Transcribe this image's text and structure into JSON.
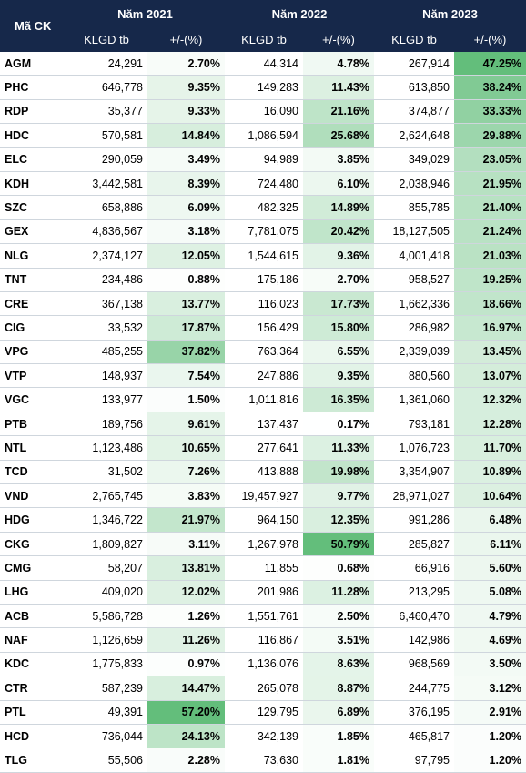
{
  "header": {
    "code_label": "Mã CK",
    "years": [
      "Năm 2021",
      "Năm 2022",
      "Năm 2023"
    ],
    "sub_volume": "KLGD tb",
    "sub_change": "+/-(%)"
  },
  "colors": {
    "header_bg": "#16284a",
    "scale_low": "#ffffff",
    "scale_high": "#63be7b"
  },
  "scale_max": {
    "2021": 57.2,
    "2022": 50.79,
    "2023": 47.25
  },
  "rows": [
    {
      "code": "AGM",
      "v21": "24,291",
      "c21": "2.70%",
      "v22": "44,314",
      "c22": "4.78%",
      "v23": "267,914",
      "c23": "47.25%"
    },
    {
      "code": "PHC",
      "v21": "646,778",
      "c21": "9.35%",
      "v22": "149,283",
      "c22": "11.43%",
      "v23": "613,850",
      "c23": "38.24%"
    },
    {
      "code": "RDP",
      "v21": "35,377",
      "c21": "9.33%",
      "v22": "16,090",
      "c22": "21.16%",
      "v23": "374,877",
      "c23": "33.33%"
    },
    {
      "code": "HDC",
      "v21": "570,581",
      "c21": "14.84%",
      "v22": "1,086,594",
      "c22": "25.68%",
      "v23": "2,624,648",
      "c23": "29.88%"
    },
    {
      "code": "ELC",
      "v21": "290,059",
      "c21": "3.49%",
      "v22": "94,989",
      "c22": "3.85%",
      "v23": "349,029",
      "c23": "23.05%"
    },
    {
      "code": "KDH",
      "v21": "3,442,581",
      "c21": "8.39%",
      "v22": "724,480",
      "c22": "6.10%",
      "v23": "2,038,946",
      "c23": "21.95%"
    },
    {
      "code": "SZC",
      "v21": "658,886",
      "c21": "6.09%",
      "v22": "482,325",
      "c22": "14.89%",
      "v23": "855,785",
      "c23": "21.40%"
    },
    {
      "code": "GEX",
      "v21": "4,836,567",
      "c21": "3.18%",
      "v22": "7,781,075",
      "c22": "20.42%",
      "v23": "18,127,505",
      "c23": "21.24%"
    },
    {
      "code": "NLG",
      "v21": "2,374,127",
      "c21": "12.05%",
      "v22": "1,544,615",
      "c22": "9.36%",
      "v23": "4,001,418",
      "c23": "21.03%"
    },
    {
      "code": "TNT",
      "v21": "234,486",
      "c21": "0.88%",
      "v22": "175,186",
      "c22": "2.70%",
      "v23": "958,527",
      "c23": "19.25%"
    },
    {
      "code": "CRE",
      "v21": "367,138",
      "c21": "13.77%",
      "v22": "116,023",
      "c22": "17.73%",
      "v23": "1,662,336",
      "c23": "18.66%"
    },
    {
      "code": "CIG",
      "v21": "33,532",
      "c21": "17.87%",
      "v22": "156,429",
      "c22": "15.80%",
      "v23": "286,982",
      "c23": "16.97%"
    },
    {
      "code": "VPG",
      "v21": "485,255",
      "c21": "37.82%",
      "v22": "763,364",
      "c22": "6.55%",
      "v23": "2,339,039",
      "c23": "13.45%"
    },
    {
      "code": "VTP",
      "v21": "148,937",
      "c21": "7.54%",
      "v22": "247,886",
      "c22": "9.35%",
      "v23": "880,560",
      "c23": "13.07%"
    },
    {
      "code": "VGC",
      "v21": "133,977",
      "c21": "1.50%",
      "v22": "1,011,816",
      "c22": "16.35%",
      "v23": "1,361,060",
      "c23": "12.32%"
    },
    {
      "code": "PTB",
      "v21": "189,756",
      "c21": "9.61%",
      "v22": "137,437",
      "c22": "0.17%",
      "v23": "793,181",
      "c23": "12.28%"
    },
    {
      "code": "NTL",
      "v21": "1,123,486",
      "c21": "10.65%",
      "v22": "277,641",
      "c22": "11.33%",
      "v23": "1,076,723",
      "c23": "11.70%"
    },
    {
      "code": "TCD",
      "v21": "31,502",
      "c21": "7.26%",
      "v22": "413,888",
      "c22": "19.98%",
      "v23": "3,354,907",
      "c23": "10.89%"
    },
    {
      "code": "VND",
      "v21": "2,765,745",
      "c21": "3.83%",
      "v22": "19,457,927",
      "c22": "9.77%",
      "v23": "28,971,027",
      "c23": "10.64%"
    },
    {
      "code": "HDG",
      "v21": "1,346,722",
      "c21": "21.97%",
      "v22": "964,150",
      "c22": "12.35%",
      "v23": "991,286",
      "c23": "6.48%"
    },
    {
      "code": "CKG",
      "v21": "1,809,827",
      "c21": "3.11%",
      "v22": "1,267,978",
      "c22": "50.79%",
      "v23": "285,827",
      "c23": "6.11%"
    },
    {
      "code": "CMG",
      "v21": "58,207",
      "c21": "13.81%",
      "v22": "11,855",
      "c22": "0.68%",
      "v23": "66,916",
      "c23": "5.60%"
    },
    {
      "code": "LHG",
      "v21": "409,020",
      "c21": "12.02%",
      "v22": "201,986",
      "c22": "11.28%",
      "v23": "213,295",
      "c23": "5.08%"
    },
    {
      "code": "ACB",
      "v21": "5,586,728",
      "c21": "1.26%",
      "v22": "1,551,761",
      "c22": "2.50%",
      "v23": "6,460,470",
      "c23": "4.79%"
    },
    {
      "code": "NAF",
      "v21": "1,126,659",
      "c21": "11.26%",
      "v22": "116,867",
      "c22": "3.51%",
      "v23": "142,986",
      "c23": "4.69%"
    },
    {
      "code": "KDC",
      "v21": "1,775,833",
      "c21": "0.97%",
      "v22": "1,136,076",
      "c22": "8.63%",
      "v23": "968,569",
      "c23": "3.50%"
    },
    {
      "code": "CTR",
      "v21": "587,239",
      "c21": "14.47%",
      "v22": "265,078",
      "c22": "8.87%",
      "v23": "244,775",
      "c23": "3.12%"
    },
    {
      "code": "PTL",
      "v21": "49,391",
      "c21": "57.20%",
      "v22": "129,795",
      "c22": "6.89%",
      "v23": "376,195",
      "c23": "2.91%"
    },
    {
      "code": "HCD",
      "v21": "736,044",
      "c21": "24.13%",
      "v22": "342,139",
      "c22": "1.85%",
      "v23": "465,817",
      "c23": "1.20%"
    },
    {
      "code": "TLG",
      "v21": "55,506",
      "c21": "2.28%",
      "v22": "73,630",
      "c22": "1.81%",
      "v23": "97,795",
      "c23": "1.20%"
    }
  ]
}
